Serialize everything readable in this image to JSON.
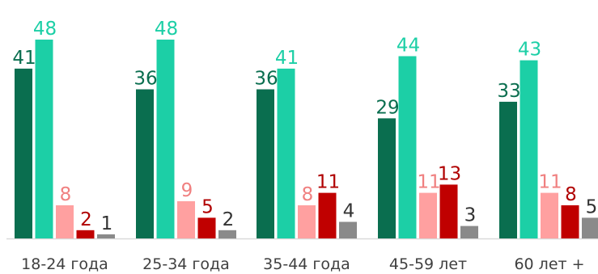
{
  "chart_data": {
    "type": "bar",
    "categories": [
      "18-24 года",
      "25-34 года",
      "35-44 года",
      "45-59 лет",
      "60 лет +"
    ],
    "series": [
      {
        "values": [
          41,
          36,
          36,
          29,
          33
        ],
        "color": "#0a6e4f",
        "label_color": "#0a6e4f"
      },
      {
        "values": [
          48,
          48,
          41,
          44,
          43
        ],
        "color": "#1ccfa6",
        "label_color": "#1ccfa6"
      },
      {
        "values": [
          8,
          9,
          8,
          11,
          11
        ],
        "color": "#ffa0a0",
        "label_color": "#f08080"
      },
      {
        "values": [
          2,
          5,
          11,
          13,
          8
        ],
        "color": "#c00000",
        "label_color": "#b00000"
      },
      {
        "values": [
          1,
          2,
          4,
          3,
          5
        ],
        "color": "#8a8a8a",
        "label_color": "#333333"
      }
    ],
    "ylim": [
      0,
      48
    ],
    "grid": false,
    "legend": "none",
    "data_labels": true
  }
}
